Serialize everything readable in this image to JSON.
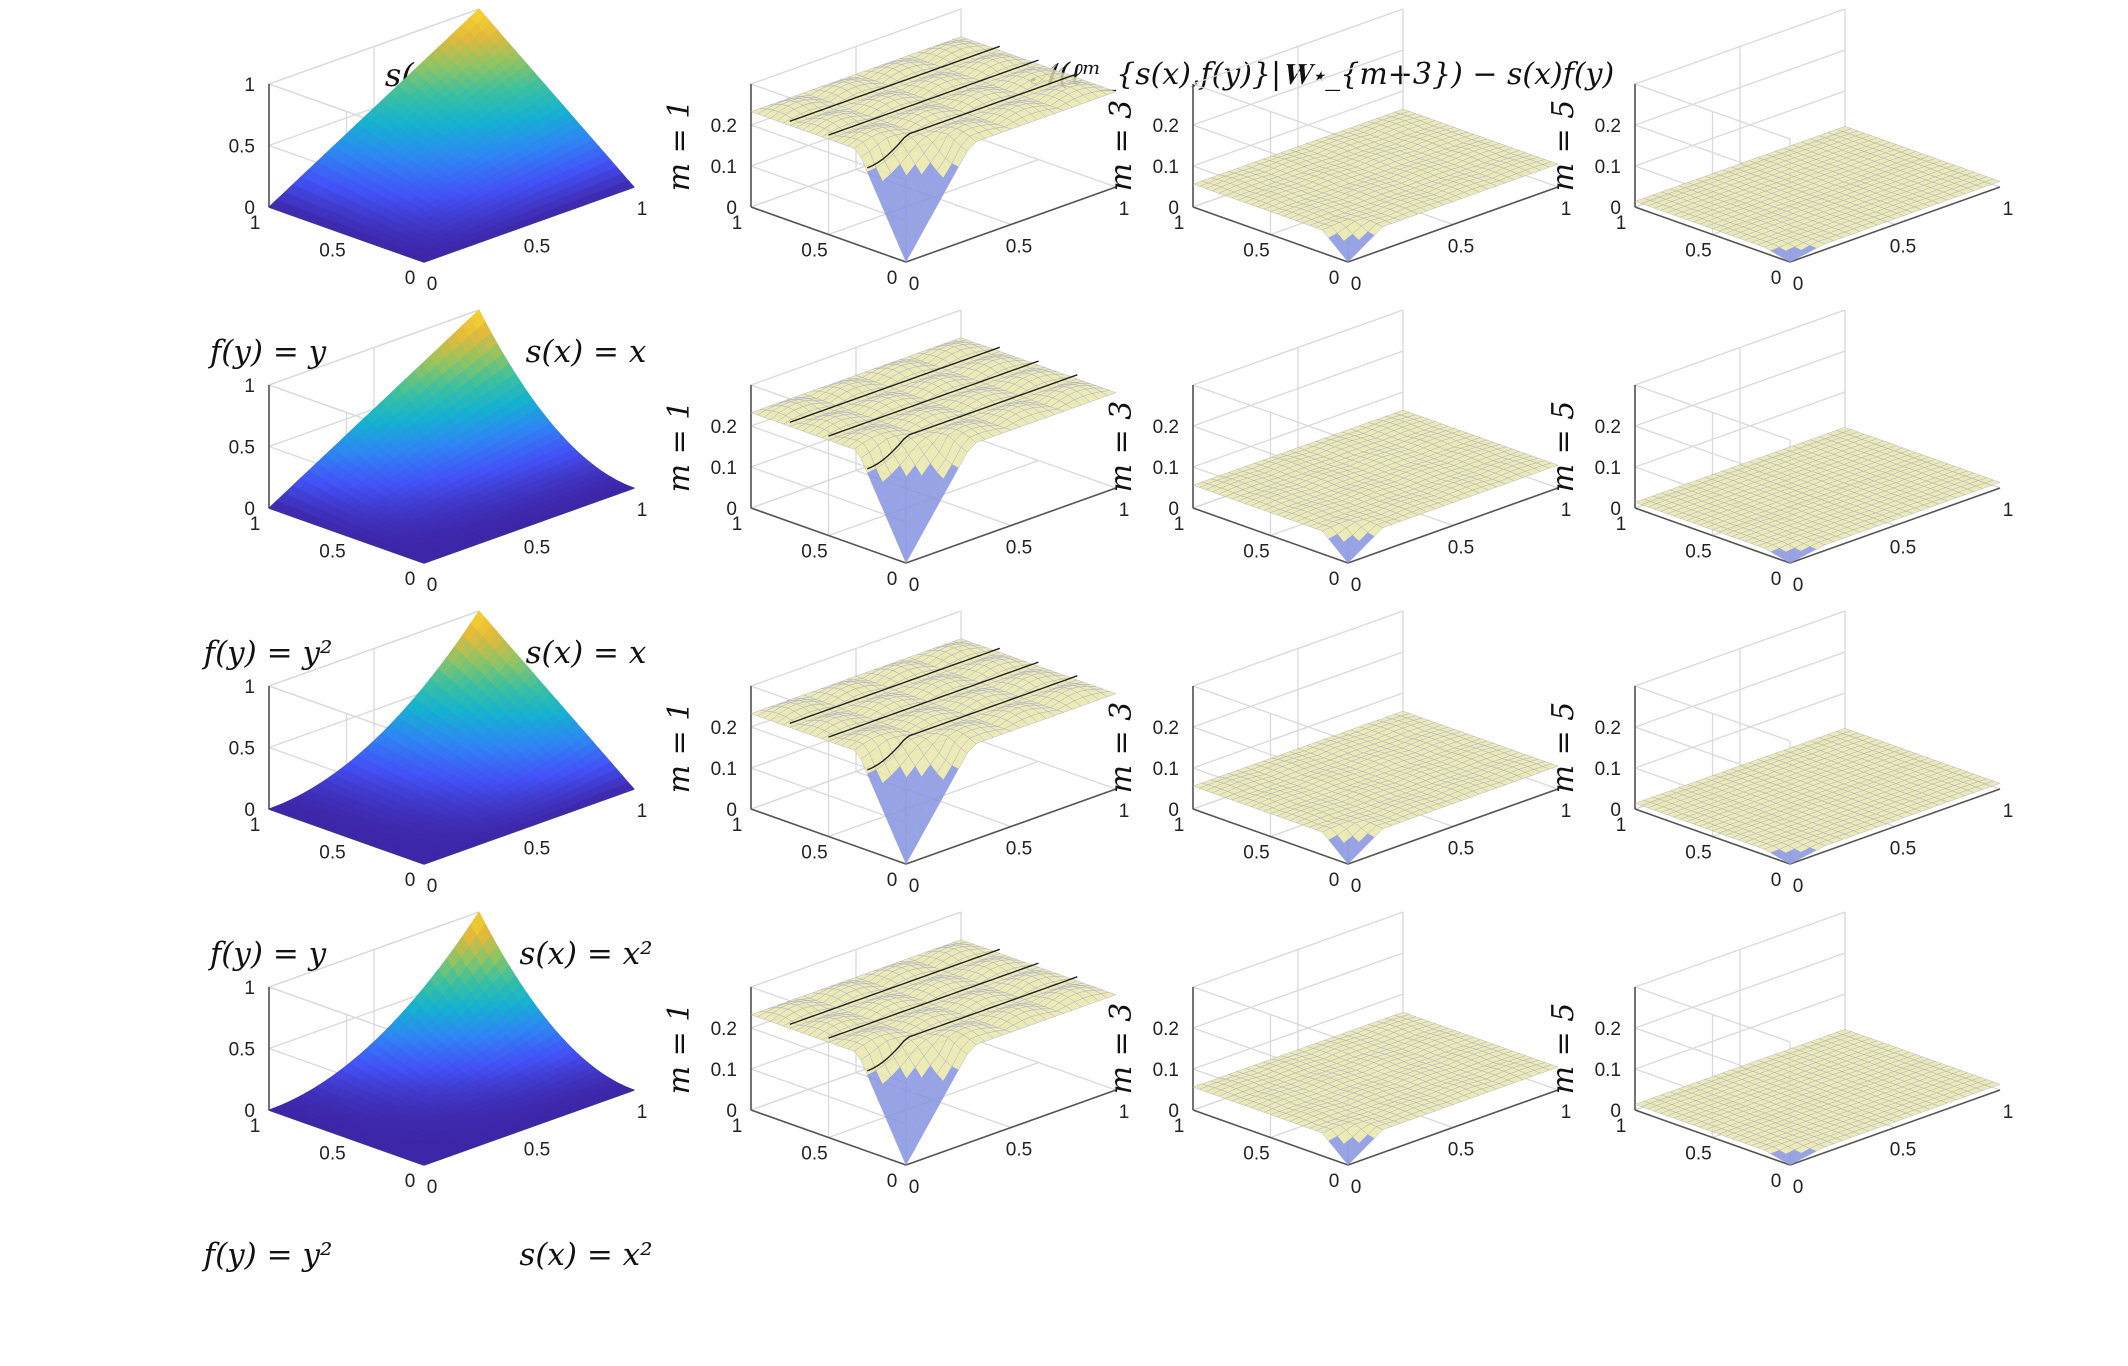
{
  "figure": {
    "column_titles": {
      "left": "s(x)f(y)",
      "right": "𝒩(ℓᵐ_{s(x),f(y)}|𝐖⋆_{m+3}) − s(x)f(y)"
    },
    "colors": {
      "axis": "#555555",
      "grid": "#d9d9d9",
      "error_surface": "#e8e6a6",
      "error_mesh": "#a8a8c8",
      "error_dip": "#7f8fe0",
      "contour": "#222222",
      "colormap": [
        "#3e26a8",
        "#4352f7",
        "#2e87f3",
        "#15b1d1",
        "#3ac0a1",
        "#8fc464",
        "#e3b93c",
        "#f9d72a"
      ]
    },
    "rows": [
      {
        "f_label": "f(y) = y",
        "s_label": "s(x) = x",
        "s_pow": 1,
        "f_pow": 1
      },
      {
        "f_label": "f(y) = y²",
        "s_label": "s(x) = x",
        "s_pow": 1,
        "f_pow": 2
      },
      {
        "f_label": "f(y) = y",
        "s_label": "s(x) = x²",
        "s_pow": 2,
        "f_pow": 1
      },
      {
        "f_label": "f(y) = y²",
        "s_label": "s(x) = x²",
        "s_pow": 2,
        "f_pow": 2
      }
    ],
    "error_columns": [
      {
        "label": "m = 1",
        "m": 1
      },
      {
        "label": "m = 3",
        "m": 3
      },
      {
        "label": "m = 5",
        "m": 5
      }
    ]
  },
  "chart_data": [
    {
      "type": "surface",
      "title": "s(x)f(y)",
      "function": "x^p * y^q",
      "panels": [
        {
          "row": 1,
          "s": "x",
          "f": "y"
        },
        {
          "row": 2,
          "s": "x",
          "f": "y^2"
        },
        {
          "row": 3,
          "s": "x^2",
          "f": "y"
        },
        {
          "row": 4,
          "s": "x^2",
          "f": "y^2"
        }
      ],
      "xlim": [
        0,
        1
      ],
      "ylim": [
        0,
        1
      ],
      "zlim": [
        0,
        1
      ],
      "x_ticks": [
        "0",
        "0.5",
        "1"
      ],
      "y_ticks": [
        "0",
        "0.5",
        "1"
      ],
      "z_ticks": [
        "0",
        "0.5",
        "1"
      ],
      "colormap": "parula",
      "grid": true
    },
    {
      "type": "surface",
      "title": "𝒩(ℓᵐ_{s(x),f(y)}|𝐖⋆_{m+3}) − s(x)f(y)",
      "series": [
        {
          "m": 1,
          "plateau_max": 0.25,
          "dip_min": 0.0
        },
        {
          "m": 3,
          "plateau_max": 0.06,
          "dip_min": 0.0
        },
        {
          "m": 5,
          "plateau_max": 0.015,
          "dip_min": 0.0
        }
      ],
      "xlim": [
        0,
        1
      ],
      "ylim": [
        0,
        1
      ],
      "zlim": [
        0,
        0.3
      ],
      "x_ticks": [
        "0",
        "0.5",
        "1"
      ],
      "y_ticks": [
        "0",
        "0.5",
        "1"
      ],
      "z_ticks": [
        "0",
        "0.1",
        "0.2"
      ],
      "grid": true
    }
  ]
}
